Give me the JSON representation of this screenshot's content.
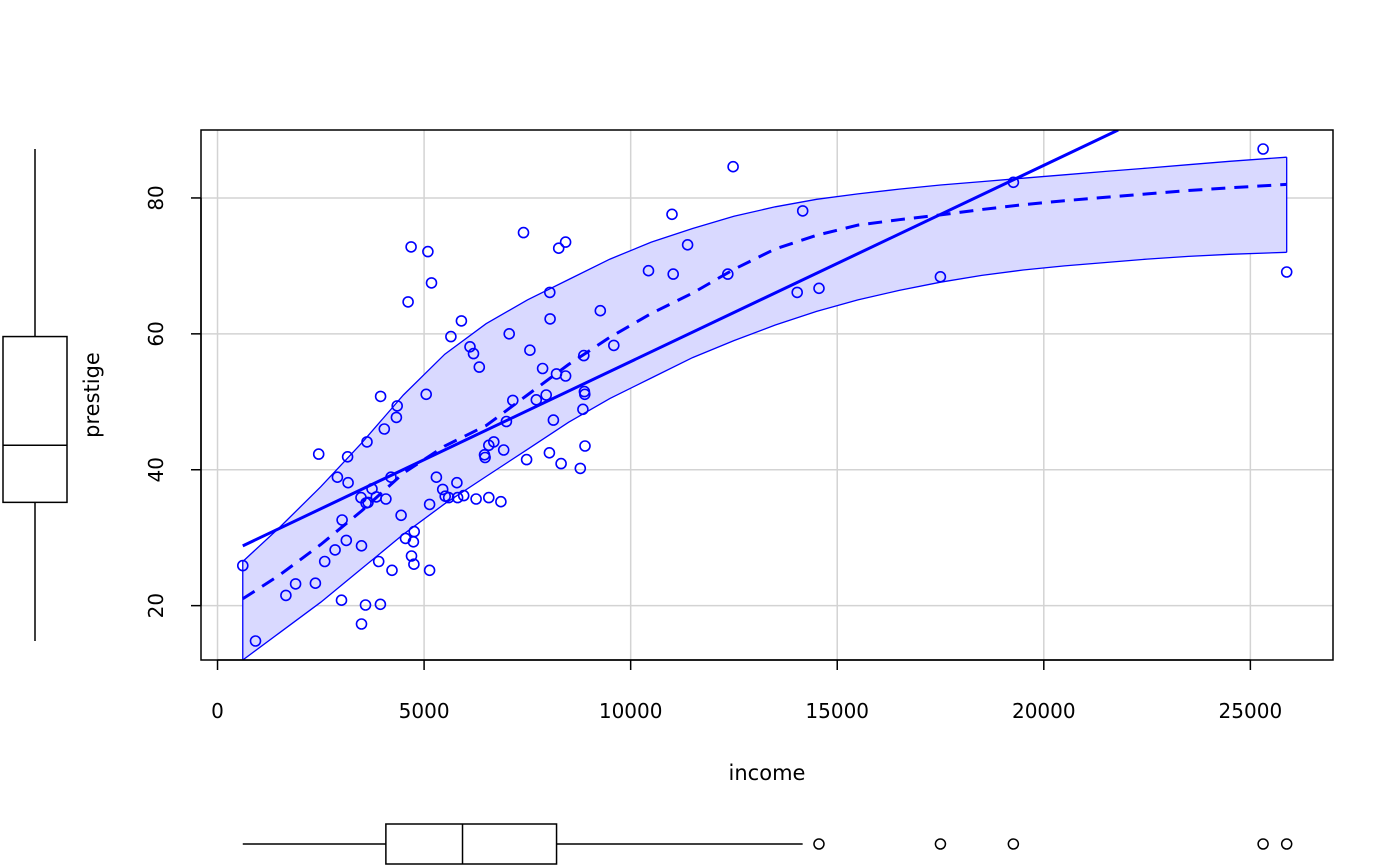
{
  "chart_data": {
    "type": "scatter",
    "xlabel": "income",
    "ylabel": "prestige",
    "xlim": [
      -400,
      27000
    ],
    "ylim": [
      12,
      90
    ],
    "x_ticks": [
      0,
      5000,
      10000,
      15000,
      20000,
      25000
    ],
    "y_ticks": [
      20,
      40,
      60,
      80
    ],
    "grid": true,
    "points": [
      [
        611,
        25.9
      ],
      [
        918,
        14.8
      ],
      [
        1656,
        21.5
      ],
      [
        1890,
        23.2
      ],
      [
        2370,
        23.3
      ],
      [
        2448,
        42.3
      ],
      [
        2594,
        26.5
      ],
      [
        2847,
        28.2
      ],
      [
        2901,
        38.9
      ],
      [
        3000,
        20.8
      ],
      [
        3016,
        32.6
      ],
      [
        3116,
        29.6
      ],
      [
        3148,
        41.9
      ],
      [
        3161,
        38.1
      ],
      [
        3472,
        35.9
      ],
      [
        3485,
        28.8
      ],
      [
        3485,
        17.3
      ],
      [
        3582,
        20.1
      ],
      [
        3595,
        35.1
      ],
      [
        3617,
        44.1
      ],
      [
        3643,
        35.2
      ],
      [
        3739,
        37.2
      ],
      [
        3843,
        36.0
      ],
      [
        3902,
        26.5
      ],
      [
        3942,
        20.2
      ],
      [
        3947,
        50.8
      ],
      [
        4036,
        46.0
      ],
      [
        4075,
        35.7
      ],
      [
        4199,
        38.9
      ],
      [
        4224,
        25.2
      ],
      [
        4330,
        47.7
      ],
      [
        4348,
        49.4
      ],
      [
        4443,
        33.3
      ],
      [
        4549,
        29.9
      ],
      [
        4614,
        64.7
      ],
      [
        4686,
        72.8
      ],
      [
        4696,
        27.3
      ],
      [
        4741,
        29.4
      ],
      [
        4753,
        26.1
      ],
      [
        4761,
        30.9
      ],
      [
        5052,
        51.1
      ],
      [
        5092,
        72.1
      ],
      [
        5134,
        25.2
      ],
      [
        5134,
        34.9
      ],
      [
        5180,
        67.5
      ],
      [
        5299,
        38.9
      ],
      [
        5451,
        37.1
      ],
      [
        5511,
        36.1
      ],
      [
        5595,
        35.9
      ],
      [
        5648,
        59.6
      ],
      [
        5795,
        38.1
      ],
      [
        5811,
        35.9
      ],
      [
        5902,
        61.9
      ],
      [
        5959,
        36.2
      ],
      [
        6112,
        58.1
      ],
      [
        6197,
        57.1
      ],
      [
        6259,
        35.7
      ],
      [
        6336,
        55.1
      ],
      [
        6462,
        42.2
      ],
      [
        6477,
        41.8
      ],
      [
        6565,
        35.9
      ],
      [
        6565,
        43.6
      ],
      [
        6686,
        44.1
      ],
      [
        6860,
        35.3
      ],
      [
        6928,
        42.9
      ],
      [
        6992,
        47.1
      ],
      [
        7059,
        60.0
      ],
      [
        7147,
        50.2
      ],
      [
        7405,
        74.9
      ],
      [
        7482,
        41.5
      ],
      [
        7562,
        57.6
      ],
      [
        7716,
        50.3
      ],
      [
        7869,
        54.9
      ],
      [
        7956,
        51.0
      ],
      [
        8034,
        42.5
      ],
      [
        8043,
        66.1
      ],
      [
        8049,
        62.2
      ],
      [
        8131,
        47.3
      ],
      [
        8206,
        54.1
      ],
      [
        8258,
        72.6
      ],
      [
        8316,
        40.9
      ],
      [
        8425,
        73.5
      ],
      [
        8425,
        53.8
      ],
      [
        8780,
        40.2
      ],
      [
        8845,
        48.9
      ],
      [
        8865,
        56.8
      ],
      [
        8880,
        51.5
      ],
      [
        8891,
        51.1
      ],
      [
        8895,
        43.5
      ],
      [
        9265,
        63.4
      ],
      [
        9593,
        58.3
      ],
      [
        10432,
        69.3
      ],
      [
        11000,
        77.6
      ],
      [
        11030,
        68.8
      ],
      [
        11377,
        73.1
      ],
      [
        12351,
        68.8
      ],
      [
        12480,
        84.6
      ],
      [
        14032,
        66.1
      ],
      [
        14163,
        78.1
      ],
      [
        14558,
        66.7
      ],
      [
        17498,
        68.4
      ],
      [
        19263,
        82.3
      ],
      [
        25308,
        87.2
      ],
      [
        25879,
        69.1
      ]
    ],
    "linear_fit": [
      [
        611,
        28.8
      ],
      [
        21800,
        90
      ]
    ],
    "smooth_fit": [
      [
        611,
        21
      ],
      [
        1500,
        24.5
      ],
      [
        2500,
        29
      ],
      [
        3500,
        34
      ],
      [
        4500,
        39.5
      ],
      [
        5500,
        43.5
      ],
      [
        6500,
        46.5
      ],
      [
        7500,
        51
      ],
      [
        8500,
        55.5
      ],
      [
        9500,
        59.5
      ],
      [
        10500,
        63
      ],
      [
        11500,
        66
      ],
      [
        12500,
        69.5
      ],
      [
        13500,
        72.5
      ],
      [
        14500,
        74.5
      ],
      [
        15500,
        76
      ],
      [
        16500,
        76.8
      ],
      [
        17500,
        77.5
      ],
      [
        18500,
        78.3
      ],
      [
        19500,
        79
      ],
      [
        20500,
        79.6
      ],
      [
        21500,
        80.1
      ],
      [
        22500,
        80.6
      ],
      [
        23500,
        81.1
      ],
      [
        24500,
        81.5
      ],
      [
        25879,
        82
      ]
    ],
    "band_upper": [
      [
        611,
        26.5
      ],
      [
        1500,
        31.5
      ],
      [
        2500,
        37.5
      ],
      [
        3500,
        44
      ],
      [
        4500,
        51
      ],
      [
        5500,
        57
      ],
      [
        6500,
        61.5
      ],
      [
        7500,
        65
      ],
      [
        8500,
        68
      ],
      [
        9500,
        71
      ],
      [
        10500,
        73.5
      ],
      [
        11500,
        75.5
      ],
      [
        12500,
        77.3
      ],
      [
        13500,
        78.7
      ],
      [
        14500,
        79.8
      ],
      [
        15500,
        80.6
      ],
      [
        16500,
        81.3
      ],
      [
        17500,
        81.9
      ],
      [
        18500,
        82.4
      ],
      [
        19500,
        82.9
      ],
      [
        20500,
        83.4
      ],
      [
        21500,
        83.9
      ],
      [
        22500,
        84.4
      ],
      [
        23500,
        84.9
      ],
      [
        24500,
        85.4
      ],
      [
        25879,
        86
      ]
    ],
    "band_lower": [
      [
        611,
        12
      ],
      [
        1500,
        16
      ],
      [
        2500,
        20.5
      ],
      [
        3500,
        25.5
      ],
      [
        4500,
        30.5
      ],
      [
        5500,
        35
      ],
      [
        6500,
        39
      ],
      [
        7500,
        43
      ],
      [
        8500,
        47
      ],
      [
        9500,
        50.5
      ],
      [
        10500,
        53.5
      ],
      [
        11500,
        56.5
      ],
      [
        12500,
        59
      ],
      [
        13500,
        61.3
      ],
      [
        14500,
        63.3
      ],
      [
        15500,
        65
      ],
      [
        16500,
        66.4
      ],
      [
        17500,
        67.6
      ],
      [
        18500,
        68.6
      ],
      [
        19500,
        69.4
      ],
      [
        20500,
        70
      ],
      [
        21500,
        70.5
      ],
      [
        22500,
        71
      ],
      [
        23500,
        71.4
      ],
      [
        24500,
        71.7
      ],
      [
        25879,
        72
      ]
    ],
    "income_boxplot": {
      "min": 611,
      "q1": 4075,
      "median": 5930,
      "q3": 8206,
      "whisker_high": 14163,
      "outliers": [
        14558,
        17498,
        19263,
        25308,
        25879
      ]
    },
    "prestige_boxplot": {
      "min": 14.8,
      "q1": 35.2,
      "median": 43.6,
      "q3": 59.6,
      "max": 87.2
    },
    "colors": {
      "points": "#0000ff",
      "fit": "#0000ff",
      "band_fill": "#d9d9ff",
      "grid": "#d3d3d3",
      "axis": "#000000"
    }
  }
}
